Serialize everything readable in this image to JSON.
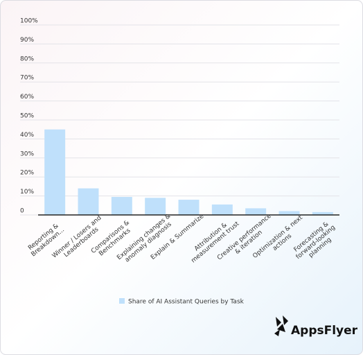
{
  "chart_data": {
    "type": "bar",
    "categories": [
      "Reporting &\nBreakdown...",
      "Winner / Losers and\nLeaderboards",
      "Comparisons &\nBenchmarks",
      "Explaining changes &\nanomaly diagnosis",
      "Explain & Summarize",
      "Attribution &\nmeasurement trust",
      "Creative performance\n& iteration",
      "Optimization & next\nactions",
      "Forecasting &\nforward-looking\nplanning"
    ],
    "series": [
      {
        "name": "Share of AI Assistant Queries by Task",
        "color": "#bfe0fb",
        "values": [
          45,
          14,
          9.5,
          9,
          8,
          5.5,
          3.5,
          2,
          1.5
        ]
      }
    ],
    "ylim": [
      0,
      100
    ],
    "yticks": [
      0,
      {
        "value": 10,
        "label": "10%"
      },
      {
        "value": 20,
        "label": "20%"
      },
      {
        "value": 30,
        "label": "30%"
      },
      {
        "value": 40,
        "label": "40%"
      },
      {
        "value": 50,
        "label": "50%"
      },
      {
        "value": 60,
        "label": "60%"
      },
      {
        "value": 70,
        "label": "70%"
      },
      {
        "value": 80,
        "label": "80%"
      },
      {
        "value": 90,
        "label": "90%"
      },
      {
        "value": 100,
        "label": "100%"
      }
    ],
    "grid": true,
    "logo": "AppsFlyer"
  }
}
